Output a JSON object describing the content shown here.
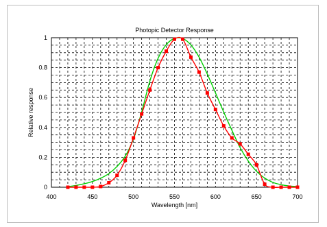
{
  "chart_data": {
    "type": "line",
    "title": "Photopic Detector Response",
    "xlabel": "Wavelength [nm]",
    "ylabel": "Relative response",
    "xlim": [
      400,
      700
    ],
    "ylim": [
      0,
      1
    ],
    "x_ticks": [
      "400",
      "450",
      "500",
      "550",
      "600",
      "650",
      "700"
    ],
    "y_ticks": [
      "0",
      "0.2",
      "0.4",
      "0.6",
      "0.8",
      "1"
    ],
    "grid": true,
    "legend": "none",
    "colors": {
      "measured": "#ff0000",
      "standard": "#00d000",
      "marker": "#ff0000"
    },
    "series": [
      {
        "key": "measured",
        "markers": true,
        "x": [
          420,
          430,
          440,
          450,
          460,
          470,
          480,
          490,
          500,
          510,
          520,
          530,
          540,
          550,
          560,
          570,
          580,
          590,
          600,
          610,
          620,
          630,
          640,
          650,
          660,
          670,
          680,
          690,
          700
        ],
        "y": [
          0.0,
          0.0,
          0.0,
          0.0,
          0.005,
          0.03,
          0.08,
          0.18,
          0.33,
          0.49,
          0.65,
          0.8,
          0.91,
          0.99,
          0.99,
          0.87,
          0.77,
          0.63,
          0.52,
          0.41,
          0.33,
          0.29,
          0.22,
          0.15,
          0.02,
          0.0,
          0.0,
          0.0,
          0.0
        ]
      },
      {
        "key": "standard",
        "markers": false,
        "x": [
          420,
          430,
          440,
          450,
          460,
          470,
          480,
          490,
          500,
          510,
          520,
          530,
          540,
          550,
          560,
          570,
          580,
          590,
          600,
          610,
          620,
          630,
          640,
          650,
          660,
          670,
          680,
          690,
          700
        ],
        "y": [
          0.004,
          0.012,
          0.023,
          0.038,
          0.06,
          0.091,
          0.139,
          0.208,
          0.323,
          0.503,
          0.71,
          0.862,
          0.954,
          0.995,
          0.995,
          0.952,
          0.87,
          0.757,
          0.631,
          0.503,
          0.381,
          0.265,
          0.175,
          0.107,
          0.061,
          0.032,
          0.017,
          0.008,
          0.004
        ]
      }
    ]
  }
}
